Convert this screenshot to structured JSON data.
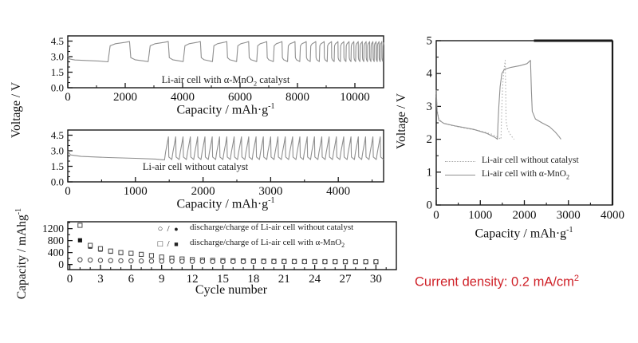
{
  "colors": {
    "background": "#ffffff",
    "axis": "#1a1a1a",
    "curve": "#8f8f8f",
    "curve_dotted": "#b0b0b0",
    "marker_fill": "#151515",
    "marker_stroke": "#4a4a4a",
    "annotation": "#cf2128"
  },
  "labels": {
    "voltage_axis": "Voltage / V",
    "capacity_axis_dot": {
      "pre": "Capacity / mAh·g",
      "sup": "-1"
    },
    "capacity_axis_plain": {
      "pre": "Capacity / mAhg",
      "sup": "-1"
    },
    "cycle_axis": "Cycle number"
  },
  "annotation": {
    "pre": "Current density: 0.2 mA/cm",
    "sup": "2"
  },
  "chart_data": [
    {
      "id": "cycling_with_catalyst",
      "type": "line",
      "inline_label": {
        "pre": "Li-air cell with α-MnO",
        "sub": "2",
        "post": " catalyst"
      },
      "xlabel": "Capacity / mAh·g⁻¹",
      "ylabel": "Voltage / V",
      "xlim": [
        0,
        11000
      ],
      "ylim": [
        0,
        5
      ],
      "xticks": [
        "0",
        "2000",
        "4000",
        "6000",
        "8000",
        "10000"
      ],
      "yticks": [
        "0.0",
        "1.5",
        "3.0",
        "4.5"
      ],
      "first_discharge": [
        [
          0,
          3.1
        ],
        [
          60,
          2.78
        ],
        [
          250,
          2.68
        ],
        [
          700,
          2.62
        ],
        [
          1100,
          2.57
        ],
        [
          1400,
          2.5
        ]
      ],
      "charge_profile": [
        [
          0.1,
          4.05
        ],
        [
          0.35,
          4.25
        ],
        [
          0.8,
          4.38
        ],
        [
          1,
          4.45
        ]
      ],
      "discharge_profile": [
        [
          0.07,
          2.9
        ],
        [
          0.3,
          2.7
        ],
        [
          1,
          2.52
        ]
      ],
      "cycles_charge_discharge_capacity": [
        [
          750,
          650
        ],
        [
          700,
          520
        ],
        [
          600,
          420
        ],
        [
          500,
          340
        ],
        [
          420,
          280
        ],
        [
          350,
          230
        ],
        [
          300,
          195
        ],
        [
          260,
          165
        ],
        [
          225,
          140
        ],
        [
          195,
          120
        ],
        [
          170,
          105
        ],
        [
          150,
          92
        ],
        [
          135,
          82
        ],
        [
          120,
          74
        ],
        [
          110,
          67
        ],
        [
          100,
          61
        ],
        [
          92,
          56
        ],
        [
          85,
          52
        ],
        [
          80,
          48
        ],
        [
          75,
          45
        ],
        [
          70,
          43
        ],
        [
          66,
          41
        ],
        [
          62,
          39
        ],
        [
          60,
          37
        ],
        [
          58,
          36
        ]
      ]
    },
    {
      "id": "cycling_without_catalyst",
      "type": "line",
      "inline_label": {
        "pre": "Li-air cell without catalyst",
        "sub": "",
        "post": ""
      },
      "xlabel": "Capacity / mAh·g⁻¹",
      "ylabel": "Voltage / V",
      "xlim": [
        0,
        4670
      ],
      "ylim": [
        0,
        5
      ],
      "xticks": [
        "0",
        "1000",
        "2000",
        "3000",
        "4000"
      ],
      "yticks": [
        "0.0",
        "1.5",
        "3.0",
        "4.5"
      ],
      "first_discharge": [
        [
          0,
          2.95
        ],
        [
          40,
          2.6
        ],
        [
          200,
          2.45
        ],
        [
          600,
          2.35
        ],
        [
          1000,
          2.27
        ],
        [
          1300,
          2.2
        ],
        [
          1430,
          2.12
        ]
      ],
      "charge_profile": [
        [
          0.3,
          2.9
        ],
        [
          0.75,
          3.8
        ],
        [
          1,
          4.35
        ]
      ],
      "discharge_profile": [
        [
          0.12,
          2.4
        ],
        [
          1,
          2.15
        ]
      ],
      "cycles_uniform": {
        "count": 30,
        "charge": 58,
        "discharge": 50
      }
    },
    {
      "id": "cycle_capacity",
      "type": "scatter",
      "xlabel": "Cycle number",
      "ylabel": "Capacity / mAhg⁻¹",
      "xlim": [
        -0.2,
        32
      ],
      "ylim": [
        -170,
        1430
      ],
      "xticks": [
        "0",
        "3",
        "6",
        "9",
        "12",
        "15",
        "18",
        "21",
        "24",
        "27",
        "30"
      ],
      "yticks": [
        "0",
        "400",
        "800",
        "1200"
      ],
      "cycles": [
        1,
        2,
        3,
        4,
        5,
        6,
        7,
        8,
        9,
        10,
        11,
        12,
        13,
        14,
        15,
        16,
        17,
        18,
        19,
        20,
        21,
        22,
        23,
        24,
        25,
        26,
        27,
        28,
        29,
        30
      ],
      "series": {
        "discharge_with_MnO2": [
          1310,
          640,
          530,
          450,
          400,
          375,
          340,
          300,
          250,
          210,
          185,
          165,
          150,
          140,
          132,
          126,
          120,
          116,
          112,
          108,
          105,
          102,
          100,
          98,
          96,
          95,
          94,
          93,
          92,
          91
        ],
        "charge_with_MnO2": [
          810,
          600,
          500,
          430,
          385,
          362,
          328,
          288,
          242,
          204,
          180,
          162,
          148,
          138,
          130,
          124,
          119,
          115,
          111,
          107,
          104,
          101,
          99,
          97,
          96,
          94,
          93,
          92,
          91,
          90
        ],
        "discharge_without": [
          160,
          150,
          140,
          132,
          126,
          122,
          118,
          115,
          112,
          110,
          108,
          106,
          104,
          103,
          102,
          101,
          100,
          99,
          98,
          98,
          97,
          97,
          96,
          96,
          95,
          95,
          95,
          94,
          94,
          94
        ],
        "charge_without": [
          148,
          140,
          133,
          127,
          122,
          118,
          114,
          111,
          109,
          107,
          105,
          103,
          102,
          101,
          100,
          99,
          98,
          97,
          97,
          96,
          96,
          95,
          95,
          94,
          94,
          94,
          93,
          93,
          93,
          93
        ]
      },
      "legend": {
        "rows": [
          {
            "open": "○",
            "sep": "/",
            "filled": "●",
            "label_pre": "discharge/charge of Li-air cell without catalyst",
            "label_sub": ""
          },
          {
            "open": "□",
            "sep": "/",
            "filled": "■",
            "label_pre": "discharge/charge of Li-air cell with α-MnO",
            "label_sub": "2"
          }
        ]
      }
    },
    {
      "id": "first_cycle_comparison",
      "type": "line",
      "xlabel": "Capacity / mAh·g⁻¹",
      "ylabel": "Voltage / V",
      "xlim": [
        0,
        4000
      ],
      "ylim": [
        0,
        5
      ],
      "xticks": [
        "0",
        "1000",
        "2000",
        "3000",
        "4000"
      ],
      "yticks": [
        "0",
        "1",
        "2",
        "3",
        "4",
        "5"
      ],
      "series": [
        {
          "name_pre": "Li-air cell without catalyst",
          "name_sub": "",
          "style": "dotted",
          "points": [
            [
              0,
              3.5
            ],
            [
              20,
              2.9
            ],
            [
              60,
              2.62
            ],
            [
              150,
              2.5
            ],
            [
              350,
              2.42
            ],
            [
              650,
              2.34
            ],
            [
              950,
              2.27
            ],
            [
              1250,
              2.16
            ],
            [
              1400,
              2.06
            ],
            [
              1470,
              2.0
            ],
            [
              1480,
              2.6
            ],
            [
              1495,
              3.2
            ],
            [
              1515,
              3.8
            ],
            [
              1540,
              4.15
            ],
            [
              1565,
              4.4
            ],
            [
              1578,
              3.3
            ],
            [
              1585,
              2.55
            ],
            [
              1620,
              2.3
            ],
            [
              1680,
              2.15
            ],
            [
              1750,
              2.02
            ],
            [
              1770,
              2.0
            ]
          ]
        },
        {
          "name_pre": "Li-air cell with α-MnO",
          "name_sub": "2",
          "style": "solid",
          "points": [
            [
              0,
              3.5
            ],
            [
              20,
              2.85
            ],
            [
              60,
              2.58
            ],
            [
              180,
              2.48
            ],
            [
              450,
              2.4
            ],
            [
              850,
              2.3
            ],
            [
              1150,
              2.18
            ],
            [
              1330,
              2.06
            ],
            [
              1390,
              2.0
            ],
            [
              1400,
              2.4
            ],
            [
              1420,
              3.0
            ],
            [
              1450,
              3.6
            ],
            [
              1490,
              4.0
            ],
            [
              1550,
              4.13
            ],
            [
              1700,
              4.19
            ],
            [
              1900,
              4.24
            ],
            [
              2060,
              4.3
            ],
            [
              2140,
              4.4
            ],
            [
              2160,
              3.5
            ],
            [
              2180,
              2.85
            ],
            [
              2250,
              2.62
            ],
            [
              2400,
              2.5
            ],
            [
              2570,
              2.38
            ],
            [
              2700,
              2.22
            ],
            [
              2790,
              2.08
            ],
            [
              2830,
              2.0
            ]
          ]
        }
      ]
    }
  ]
}
